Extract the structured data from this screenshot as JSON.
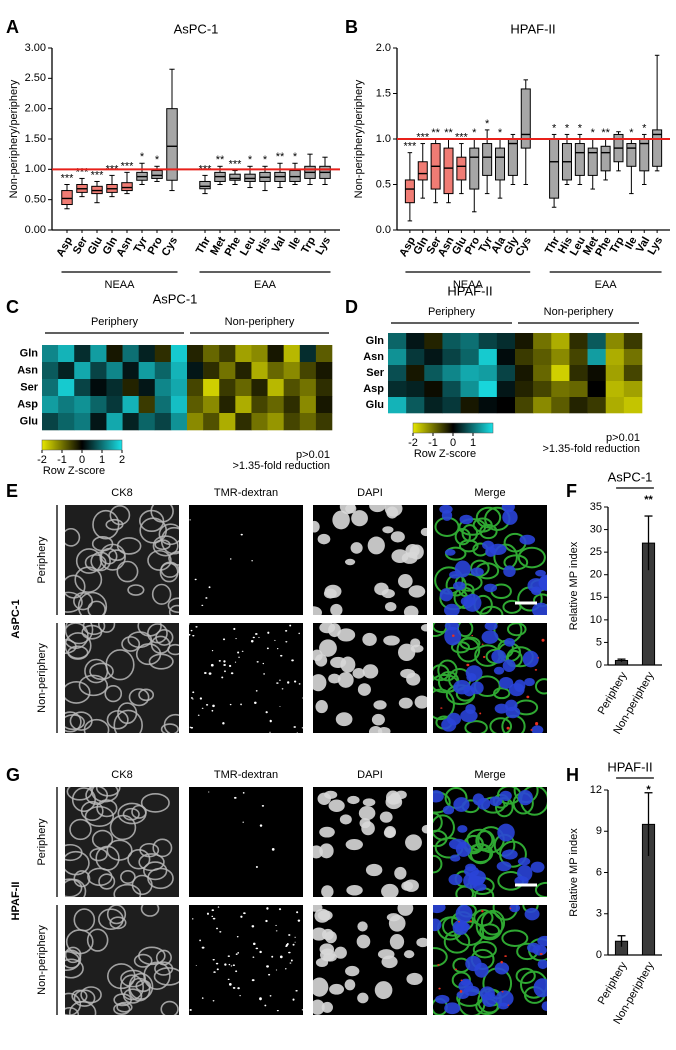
{
  "chart_data": [
    {
      "type": "box",
      "label": "A",
      "title": "AsPC-1",
      "ylabel": "Non-periphery/periphery",
      "ylim": [
        0,
        3
      ],
      "yticks": [
        {
          "value": 0,
          "label": "0.00"
        },
        {
          "value": 0.5,
          "label": "0.50"
        },
        {
          "value": 1,
          "label": "1.00"
        },
        {
          "value": 1.5,
          "label": "1.50"
        },
        {
          "value": 2,
          "label": "2.00"
        },
        {
          "value": 2.5,
          "label": "2.50"
        },
        {
          "value": 3,
          "label": "3.00"
        }
      ],
      "reference_line": 1,
      "reference_color": "#e8201a",
      "groups": [
        {
          "name": "NEAA",
          "categories": [
            "Asp",
            "Ser",
            "Glu",
            "Gln",
            "Asn",
            "Tyr",
            "Pro",
            "Cys"
          ],
          "colors": [
            "#f07c74",
            "#f07c74",
            "#f07c74",
            "#f07c74",
            "#f07c74",
            "#a6a6a6",
            "#a6a6a6",
            "#a6a6a6"
          ],
          "significance": [
            "***",
            "***",
            "***",
            "***",
            "***",
            "*",
            "*",
            null
          ],
          "boxes": [
            {
              "min": 0.35,
              "q1": 0.42,
              "median": 0.52,
              "q3": 0.65,
              "max": 0.75
            },
            {
              "min": 0.55,
              "q1": 0.62,
              "median": 0.68,
              "q3": 0.75,
              "max": 0.85
            },
            {
              "min": 0.45,
              "q1": 0.6,
              "median": 0.65,
              "q3": 0.72,
              "max": 0.8
            },
            {
              "min": 0.55,
              "q1": 0.62,
              "median": 0.68,
              "q3": 0.75,
              "max": 0.9
            },
            {
              "min": 0.6,
              "q1": 0.65,
              "median": 0.7,
              "q3": 0.78,
              "max": 0.95
            },
            {
              "min": 0.75,
              "q1": 0.82,
              "median": 0.88,
              "q3": 0.95,
              "max": 1.1
            },
            {
              "min": 0.8,
              "q1": 0.85,
              "median": 0.9,
              "q3": 0.98,
              "max": 1.05
            },
            {
              "min": 0.65,
              "q1": 0.82,
              "median": 1.38,
              "q3": 2.0,
              "max": 2.65
            }
          ]
        },
        {
          "name": "EAA",
          "categories": [
            "Thr",
            "Met",
            "Phe",
            "Leu",
            "His",
            "Val",
            "Ile",
            "Trp",
            "Lys"
          ],
          "colors": [
            "#a6a6a6",
            "#a6a6a6",
            "#a6a6a6",
            "#a6a6a6",
            "#a6a6a6",
            "#a6a6a6",
            "#a6a6a6",
            "#a6a6a6",
            "#a6a6a6"
          ],
          "significance": [
            "***",
            "**",
            "***",
            "*",
            "*",
            "**",
            "*",
            null,
            null
          ],
          "boxes": [
            {
              "min": 0.6,
              "q1": 0.68,
              "median": 0.72,
              "q3": 0.8,
              "max": 0.9
            },
            {
              "min": 0.75,
              "q1": 0.8,
              "median": 0.88,
              "q3": 0.95,
              "max": 1.05
            },
            {
              "min": 0.75,
              "q1": 0.82,
              "median": 0.85,
              "q3": 0.92,
              "max": 0.98
            },
            {
              "min": 0.7,
              "q1": 0.8,
              "median": 0.85,
              "q3": 0.92,
              "max": 1.05
            },
            {
              "min": 0.65,
              "q1": 0.8,
              "median": 0.87,
              "q3": 0.95,
              "max": 1.05
            },
            {
              "min": 0.7,
              "q1": 0.8,
              "median": 0.88,
              "q3": 0.95,
              "max": 1.1
            },
            {
              "min": 0.75,
              "q1": 0.8,
              "median": 0.88,
              "q3": 0.98,
              "max": 1.1
            },
            {
              "min": 0.75,
              "q1": 0.85,
              "median": 0.95,
              "q3": 1.05,
              "max": 1.25
            },
            {
              "min": 0.75,
              "q1": 0.85,
              "median": 0.95,
              "q3": 1.05,
              "max": 1.2
            }
          ]
        }
      ]
    },
    {
      "type": "box",
      "label": "B",
      "title": "HPAF-II",
      "ylabel": "Non-periphery/periphery",
      "ylim": [
        0,
        2
      ],
      "yticks": [
        {
          "value": 0,
          "label": "0.0"
        },
        0.5,
        {
          "value": 1,
          "label": "1.0"
        },
        1.5,
        {
          "value": 2,
          "label": "2.0"
        }
      ],
      "reference_line": 1,
      "reference_color": "#e8201a",
      "groups": [
        {
          "name": "NEAA",
          "categories": [
            "Asp",
            "Gln",
            "Ser",
            "Asn",
            "Glu",
            "Pro",
            "Tyr",
            "Ala",
            "Gly",
            "Cys"
          ],
          "colors": [
            "#f07c74",
            "#f07c74",
            "#f07c74",
            "#f07c74",
            "#f07c74",
            "#a6a6a6",
            "#a6a6a6",
            "#a6a6a6",
            "#a6a6a6",
            "#a6a6a6"
          ],
          "significance": [
            "***",
            "***",
            "**",
            "**",
            "***",
            "*",
            "*",
            "*",
            null,
            null
          ],
          "boxes": [
            {
              "min": 0.1,
              "q1": 0.3,
              "median": 0.45,
              "q3": 0.55,
              "max": 0.85
            },
            {
              "min": 0.35,
              "q1": 0.55,
              "median": 0.62,
              "q3": 0.75,
              "max": 0.95
            },
            {
              "min": 0.3,
              "q1": 0.45,
              "median": 0.7,
              "q3": 0.95,
              "max": 1.0
            },
            {
              "min": 0.3,
              "q1": 0.4,
              "median": 0.68,
              "q3": 0.9,
              "max": 1.0
            },
            {
              "min": 0.4,
              "q1": 0.55,
              "median": 0.7,
              "q3": 0.8,
              "max": 0.95
            },
            {
              "min": 0.2,
              "q1": 0.45,
              "median": 0.8,
              "q3": 0.9,
              "max": 1.0
            },
            {
              "min": 0.4,
              "q1": 0.6,
              "median": 0.8,
              "q3": 0.95,
              "max": 1.1
            },
            {
              "min": 0.35,
              "q1": 0.55,
              "median": 0.8,
              "q3": 0.9,
              "max": 1.0
            },
            {
              "min": 0.5,
              "q1": 0.6,
              "median": 0.95,
              "q3": 1.0,
              "max": 1.05
            },
            {
              "min": 0.5,
              "q1": 0.9,
              "median": 1.05,
              "q3": 1.55,
              "max": 1.65
            }
          ]
        },
        {
          "name": "EAA",
          "categories": [
            "Thr",
            "His",
            "Leu",
            "Met",
            "Phe",
            "Trp",
            "Ile",
            "Val",
            "Lys"
          ],
          "colors": [
            "#a6a6a6",
            "#a6a6a6",
            "#a6a6a6",
            "#a6a6a6",
            "#a6a6a6",
            "#a6a6a6",
            "#a6a6a6",
            "#a6a6a6",
            "#a6a6a6"
          ],
          "significance": [
            "*",
            "*",
            "*",
            "*",
            "**",
            null,
            "*",
            "*",
            null
          ],
          "boxes": [
            {
              "min": 0.25,
              "q1": 0.35,
              "median": 0.75,
              "q3": 1.0,
              "max": 1.05
            },
            {
              "min": 0.5,
              "q1": 0.55,
              "median": 0.75,
              "q3": 0.95,
              "max": 1.05
            },
            {
              "min": 0.5,
              "q1": 0.6,
              "median": 0.85,
              "q3": 0.95,
              "max": 1.05
            },
            {
              "min": 0.45,
              "q1": 0.6,
              "median": 0.85,
              "q3": 0.9,
              "max": 1.0
            },
            {
              "min": 0.55,
              "q1": 0.65,
              "median": 0.85,
              "q3": 0.92,
              "max": 1.0
            },
            {
              "min": 0.65,
              "q1": 0.75,
              "median": 0.9,
              "q3": 1.05,
              "max": 1.08
            },
            {
              "min": 0.4,
              "q1": 0.7,
              "median": 0.9,
              "q3": 0.95,
              "max": 1.0
            },
            {
              "min": 0.5,
              "q1": 0.65,
              "median": 0.95,
              "q3": 1.0,
              "max": 1.05
            },
            {
              "min": 0.65,
              "q1": 0.7,
              "median": 1.05,
              "q3": 1.1,
              "max": 1.92
            }
          ]
        }
      ]
    },
    {
      "type": "heatmap",
      "label": "C",
      "title": "AsPC-1",
      "rows": [
        "Gln",
        "Asn",
        "Ser",
        "Asp",
        "Glu"
      ],
      "zlim": [
        -2,
        2
      ],
      "colormap": [
        "#e6e600",
        "#000000",
        "#19e0e6"
      ],
      "colorbar_ticks": [
        -2,
        -1,
        0,
        1,
        2
      ],
      "colorbar_label": "Row Z-score",
      "note": [
        "p>0.01",
        ">1.35-fold reduction"
      ],
      "groups": [
        {
          "name": "Periphery",
          "values": [
            [
              1.2,
              1.6,
              0.4,
              1.4,
              -0.2,
              1.0,
              0.3,
              -0.4,
              1.8
            ],
            [
              0.8,
              0.3,
              1.5,
              0.6,
              1.2,
              0.2,
              1.4,
              0.9,
              1.6
            ],
            [
              1.0,
              1.8,
              0.6,
              0.1,
              0.4,
              -0.3,
              0.2,
              1.2,
              1.5
            ],
            [
              1.4,
              1.1,
              1.3,
              0.9,
              0.5,
              1.6,
              -0.5,
              1.0,
              1.7
            ],
            [
              0.6,
              0.9,
              1.1,
              0.2,
              1.5,
              0.3,
              0.9,
              0.6,
              1.3
            ]
          ]
        },
        {
          "name": "Non-periphery",
          "values": [
            [
              -0.3,
              -0.9,
              -0.5,
              -1.4,
              -1.2,
              -0.2,
              -1.6,
              0.4,
              -0.8
            ],
            [
              0.2,
              -0.4,
              -1.0,
              -0.3,
              -1.5,
              -0.9,
              -1.2,
              -0.6,
              -0.2
            ],
            [
              -0.6,
              -1.8,
              -0.5,
              -0.9,
              -0.3,
              -1.6,
              -0.7,
              -1.0,
              -0.4
            ],
            [
              -0.8,
              -1.2,
              -0.3,
              -1.5,
              -0.6,
              -0.9,
              -0.4,
              -1.2,
              -0.2
            ],
            [
              -1.2,
              -0.7,
              -1.5,
              -0.4,
              -1.0,
              -1.3,
              -0.6,
              -0.9,
              -0.5
            ]
          ]
        }
      ]
    },
    {
      "type": "heatmap",
      "label": "D",
      "title": "HPAF-II",
      "rows": [
        "Gln",
        "Asn",
        "Ser",
        "Asp",
        "Glu"
      ],
      "zlim": [
        -2,
        2
      ],
      "colormap": [
        "#e6e600",
        "#000000",
        "#19e0e6"
      ],
      "colorbar_ticks": [
        -2,
        -1,
        0,
        1
      ],
      "colorbar_label": "Row Z-score",
      "note": [
        "p>0.01",
        ">1.35-fold reduction"
      ],
      "groups": [
        {
          "name": "Periphery",
          "values": [
            [
              0.9,
              0.2,
              -0.3,
              0.8,
              1.0,
              0.6,
              0.4
            ],
            [
              1.3,
              0.5,
              0.2,
              0.6,
              0.9,
              1.8,
              0.1
            ],
            [
              0.7,
              -0.2,
              0.8,
              1.2,
              1.5,
              1.4,
              0.6
            ],
            [
              0.4,
              0.3,
              -0.1,
              0.7,
              1.3,
              1.9,
              0.2
            ],
            [
              1.6,
              0.8,
              0.3,
              0.5,
              -0.2,
              0.1,
              0.0
            ]
          ]
        },
        {
          "name": "Non-periphery",
          "values": [
            [
              -0.2,
              -1.0,
              -1.5,
              -0.4,
              0.8,
              -1.2,
              -0.5
            ],
            [
              -0.5,
              -0.8,
              -1.2,
              -0.6,
              1.4,
              -1.5,
              -1.0
            ],
            [
              -0.2,
              -0.9,
              -1.8,
              -0.4,
              -0.1,
              -1.4,
              -0.6
            ],
            [
              -0.3,
              -0.6,
              -1.0,
              -0.9,
              0.0,
              -1.6,
              -1.4
            ],
            [
              -0.6,
              -1.2,
              -0.8,
              -0.3,
              -0.5,
              -1.5,
              -1.7
            ]
          ]
        }
      ]
    },
    {
      "type": "bar",
      "label": "F",
      "title": "AsPC-1",
      "ylabel": "Relative MP index",
      "significance": "**",
      "categories": [
        "Periphery",
        "Non-periphery"
      ],
      "category_colors": [
        "#000000",
        "#e8201a"
      ],
      "values": [
        1,
        27
      ],
      "errors": [
        0.3,
        6
      ],
      "color": "#3a3a3a",
      "ylim": [
        0,
        35
      ],
      "yticks": [
        0,
        5,
        10,
        15,
        20,
        25,
        30,
        35
      ]
    },
    {
      "type": "bar",
      "label": "H",
      "title": "HPAF-II",
      "ylabel": "Relative MP index",
      "significance": "*",
      "categories": [
        "Periphery",
        "Non-periphery"
      ],
      "category_colors": [
        "#000000",
        "#e8201a"
      ],
      "values": [
        1,
        9.5
      ],
      "errors": [
        0.4,
        2.3
      ],
      "color": "#3a3a3a",
      "ylim": [
        0,
        12
      ],
      "yticks": [
        0,
        3,
        6,
        9,
        12
      ]
    }
  ],
  "image_panels": [
    {
      "label": "E",
      "cell_line": "AsPC-1",
      "columns": [
        {
          "name": "CK8",
          "color": "#2aa84a"
        },
        {
          "name": "TMR-dextran",
          "color": "#e8201a"
        },
        {
          "name": "DAPI",
          "color": "#1a2ee8"
        },
        {
          "name": "Merge",
          "color": "#000000"
        }
      ],
      "rows": [
        {
          "name": "Periphery",
          "color": "#000000"
        },
        {
          "name": "Non-periphery",
          "color": "#e8201a"
        }
      ]
    },
    {
      "label": "G",
      "cell_line": "HPAF-II",
      "columns": [
        {
          "name": "CK8",
          "color": "#2aa84a"
        },
        {
          "name": "TMR-dextran",
          "color": "#e8201a"
        },
        {
          "name": "DAPI",
          "color": "#1a2ee8"
        },
        {
          "name": "Merge",
          "color": "#000000"
        }
      ],
      "rows": [
        {
          "name": "Periphery",
          "color": "#000000"
        },
        {
          "name": "Non-periphery",
          "color": "#e8201a"
        }
      ]
    }
  ]
}
